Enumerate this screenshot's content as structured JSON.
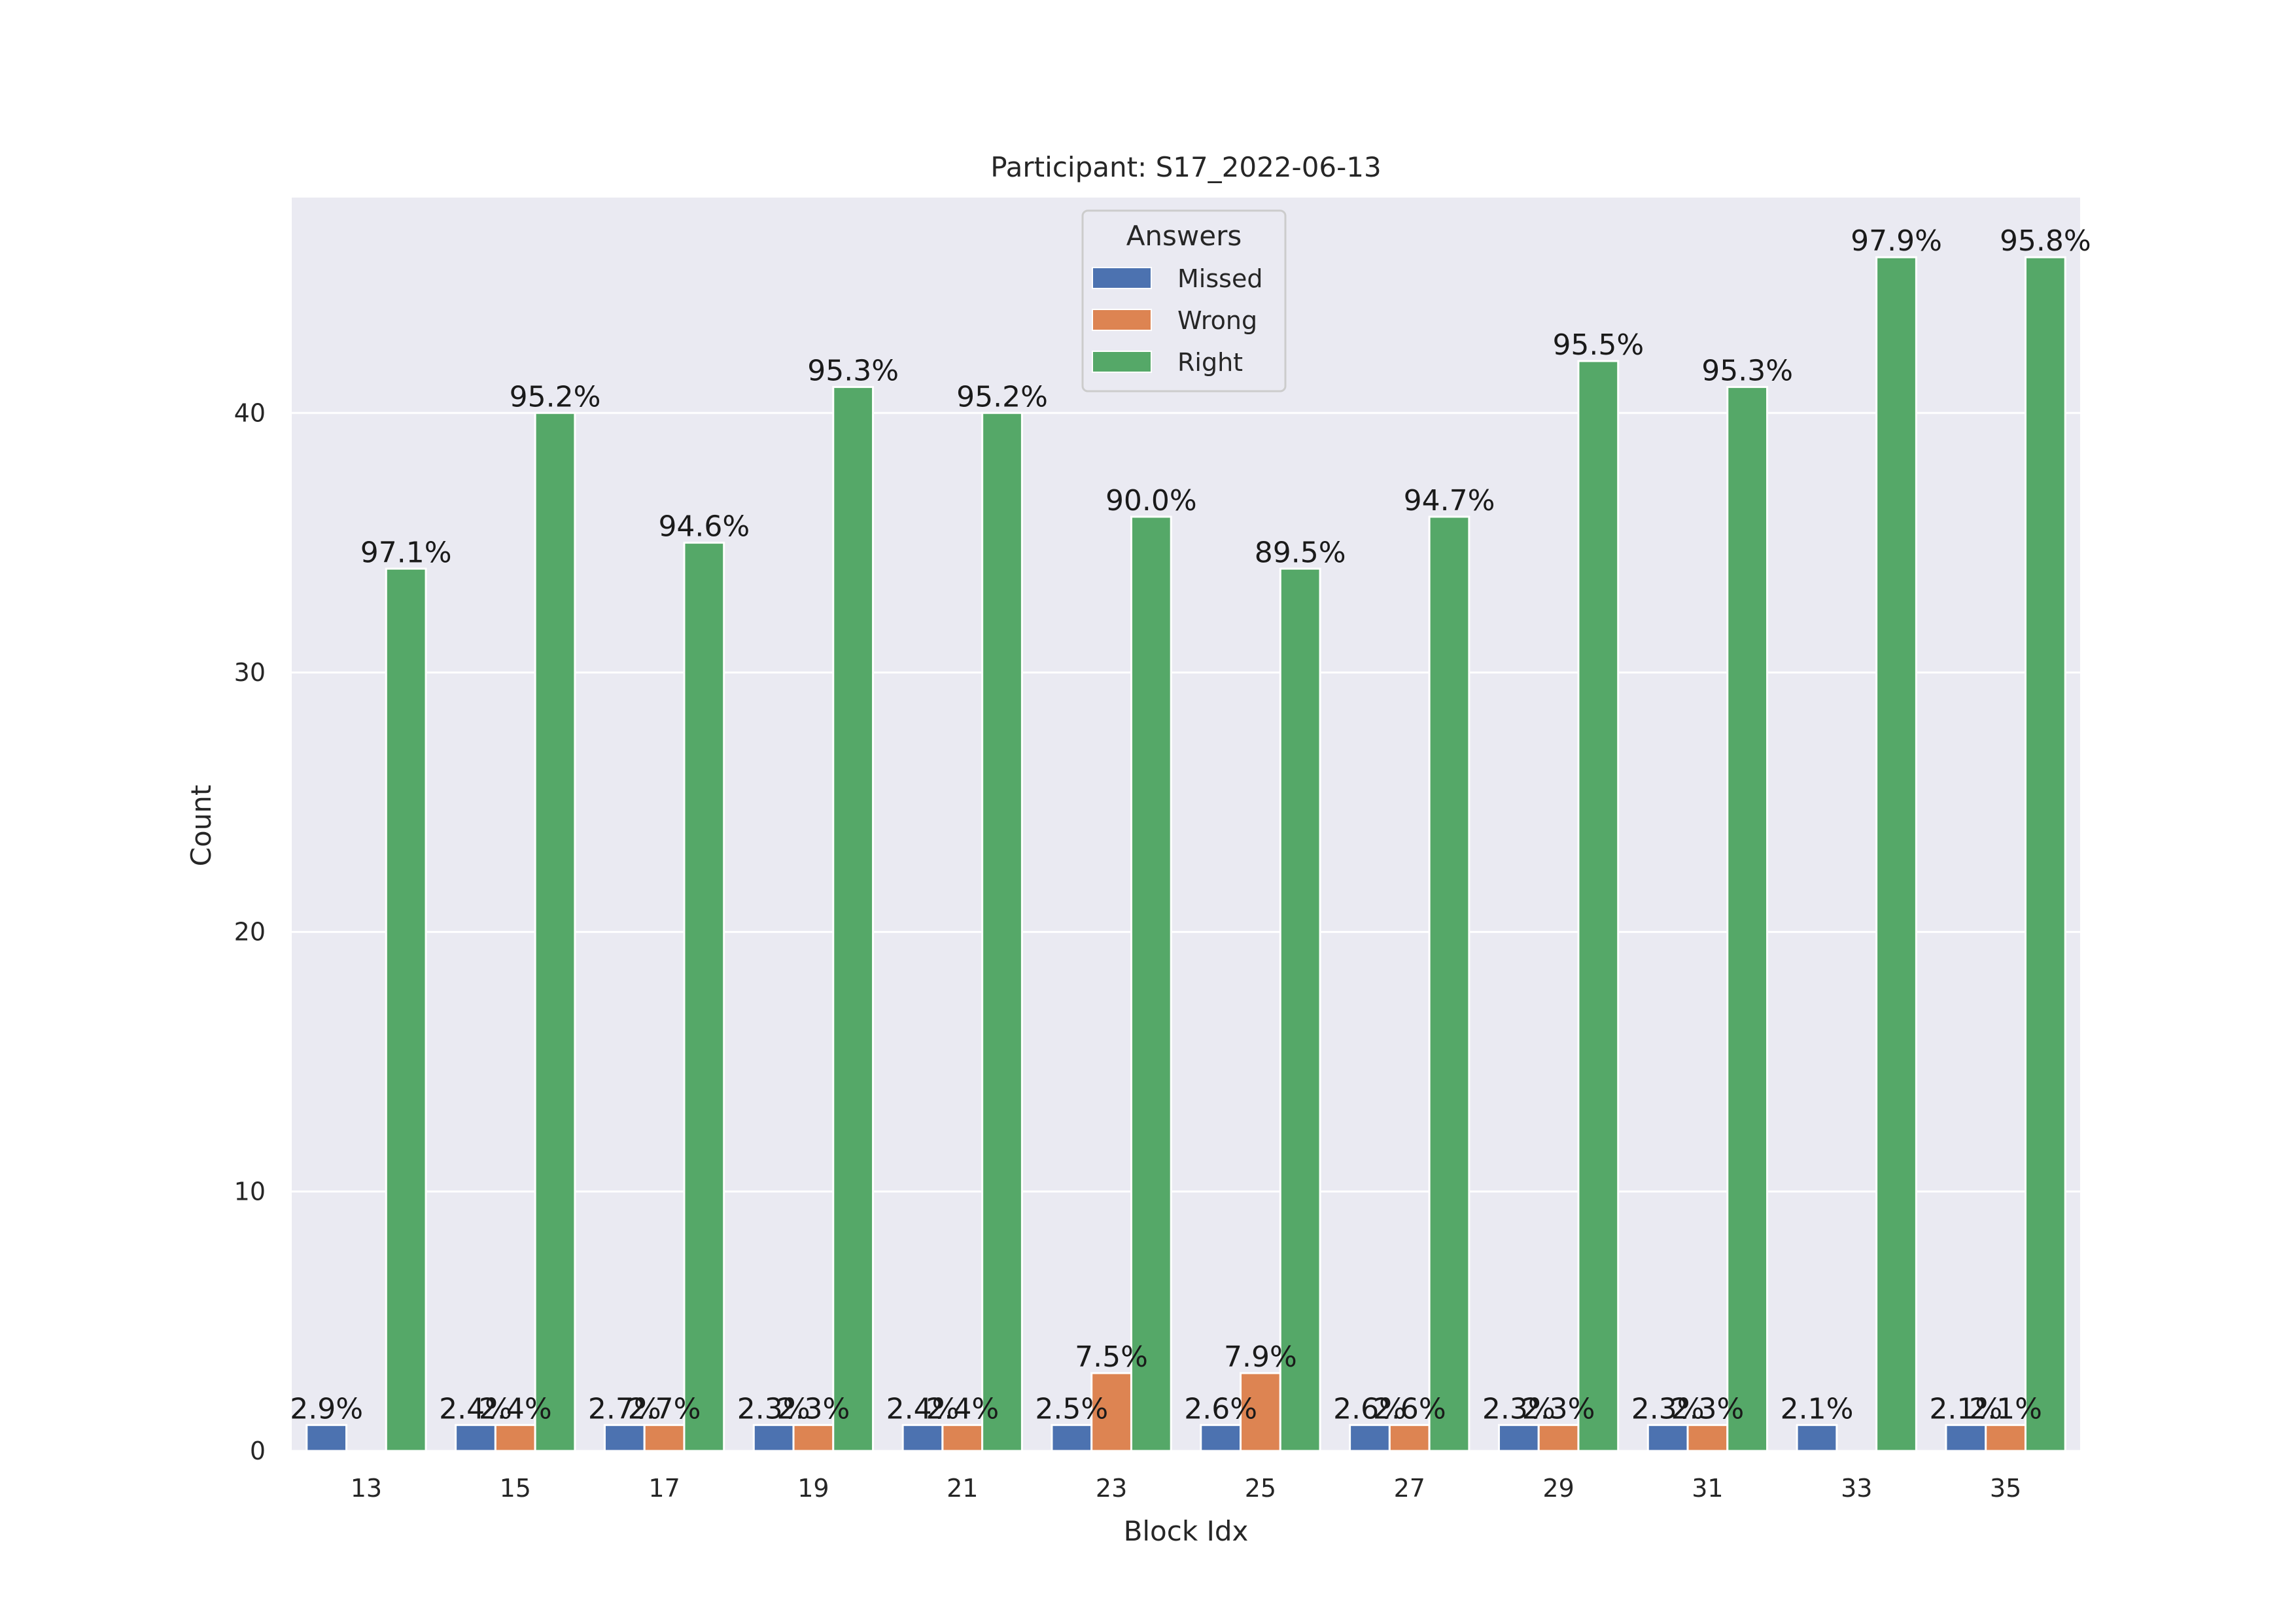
{
  "chart_data": {
    "type": "bar",
    "title": "Participant: S17_2022-06-13",
    "xlabel": "Block Idx",
    "ylabel": "Count",
    "ylim": [
      0,
      48.3
    ],
    "yticks": [
      0,
      10,
      20,
      30,
      40
    ],
    "grid": true,
    "legend": {
      "title": "Answers",
      "placement": "upper-center"
    },
    "categories": [
      "13",
      "15",
      "17",
      "19",
      "21",
      "23",
      "25",
      "27",
      "29",
      "31",
      "33",
      "35"
    ],
    "series": [
      {
        "name": "Missed",
        "color": "#4c72b0",
        "values": [
          1,
          1,
          1,
          1,
          1,
          1,
          1,
          1,
          1,
          1,
          1,
          1
        ],
        "labels": [
          "2.9%",
          "2.4%",
          "2.7%",
          "2.3%",
          "2.4%",
          "2.5%",
          "2.6%",
          "2.6%",
          "2.3%",
          "2.3%",
          "2.1%",
          "2.1%"
        ]
      },
      {
        "name": "Wrong",
        "color": "#dd8452",
        "values": [
          0,
          1,
          1,
          1,
          1,
          3,
          3,
          1,
          1,
          1,
          0,
          1
        ],
        "labels": [
          "",
          "2.4%",
          "2.7%",
          "2.3%",
          "2.4%",
          "7.5%",
          "7.9%",
          "2.6%",
          "2.3%",
          "2.3%",
          "",
          "2.1%"
        ]
      },
      {
        "name": "Right",
        "color": "#55a868",
        "values": [
          34,
          40,
          35,
          41,
          40,
          36,
          34,
          36,
          42,
          41,
          46,
          46
        ],
        "labels": [
          "97.1%",
          "95.2%",
          "94.6%",
          "95.3%",
          "95.2%",
          "90.0%",
          "89.5%",
          "94.7%",
          "95.5%",
          "95.3%",
          "97.9%",
          "95.8%"
        ]
      }
    ]
  }
}
